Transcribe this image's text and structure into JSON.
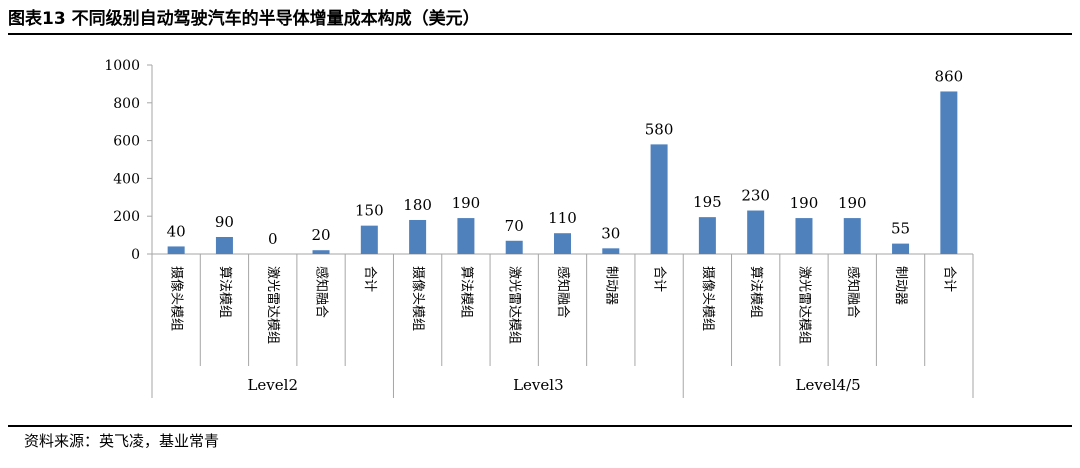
{
  "figure": {
    "title": "图表13 不同级别自动驾驶汽车的半导体增量成本构成（美元）",
    "source_label": "资料来源：",
    "source_text": "英飞凌，基业常青"
  },
  "colors": {
    "bar": "#4f81bd",
    "axis": "#a6a6a6",
    "text": "#000000"
  },
  "chart_data": {
    "type": "bar",
    "title": "",
    "xlabel": "",
    "ylabel": "",
    "ylim": [
      0,
      1000
    ],
    "yticks": [
      0,
      200,
      400,
      600,
      800,
      1000
    ],
    "groups": [
      {
        "name": "Level2",
        "categories": [
          "摄像头模组",
          "算法模组",
          "激光雷达模组",
          "感知融合",
          "合计"
        ],
        "values": [
          40,
          90,
          0,
          20,
          150
        ]
      },
      {
        "name": "Level3",
        "categories": [
          "摄像头模组",
          "算法模组",
          "激光雷达模组",
          "感知融合",
          "制动器",
          "合计"
        ],
        "values": [
          180,
          190,
          70,
          110,
          30,
          580
        ]
      },
      {
        "name": "Level4/5",
        "categories": [
          "摄像头模组",
          "算法模组",
          "激光雷达模组",
          "感知融合",
          "制动器",
          "合计"
        ],
        "values": [
          195,
          230,
          190,
          190,
          55,
          860
        ]
      }
    ]
  }
}
